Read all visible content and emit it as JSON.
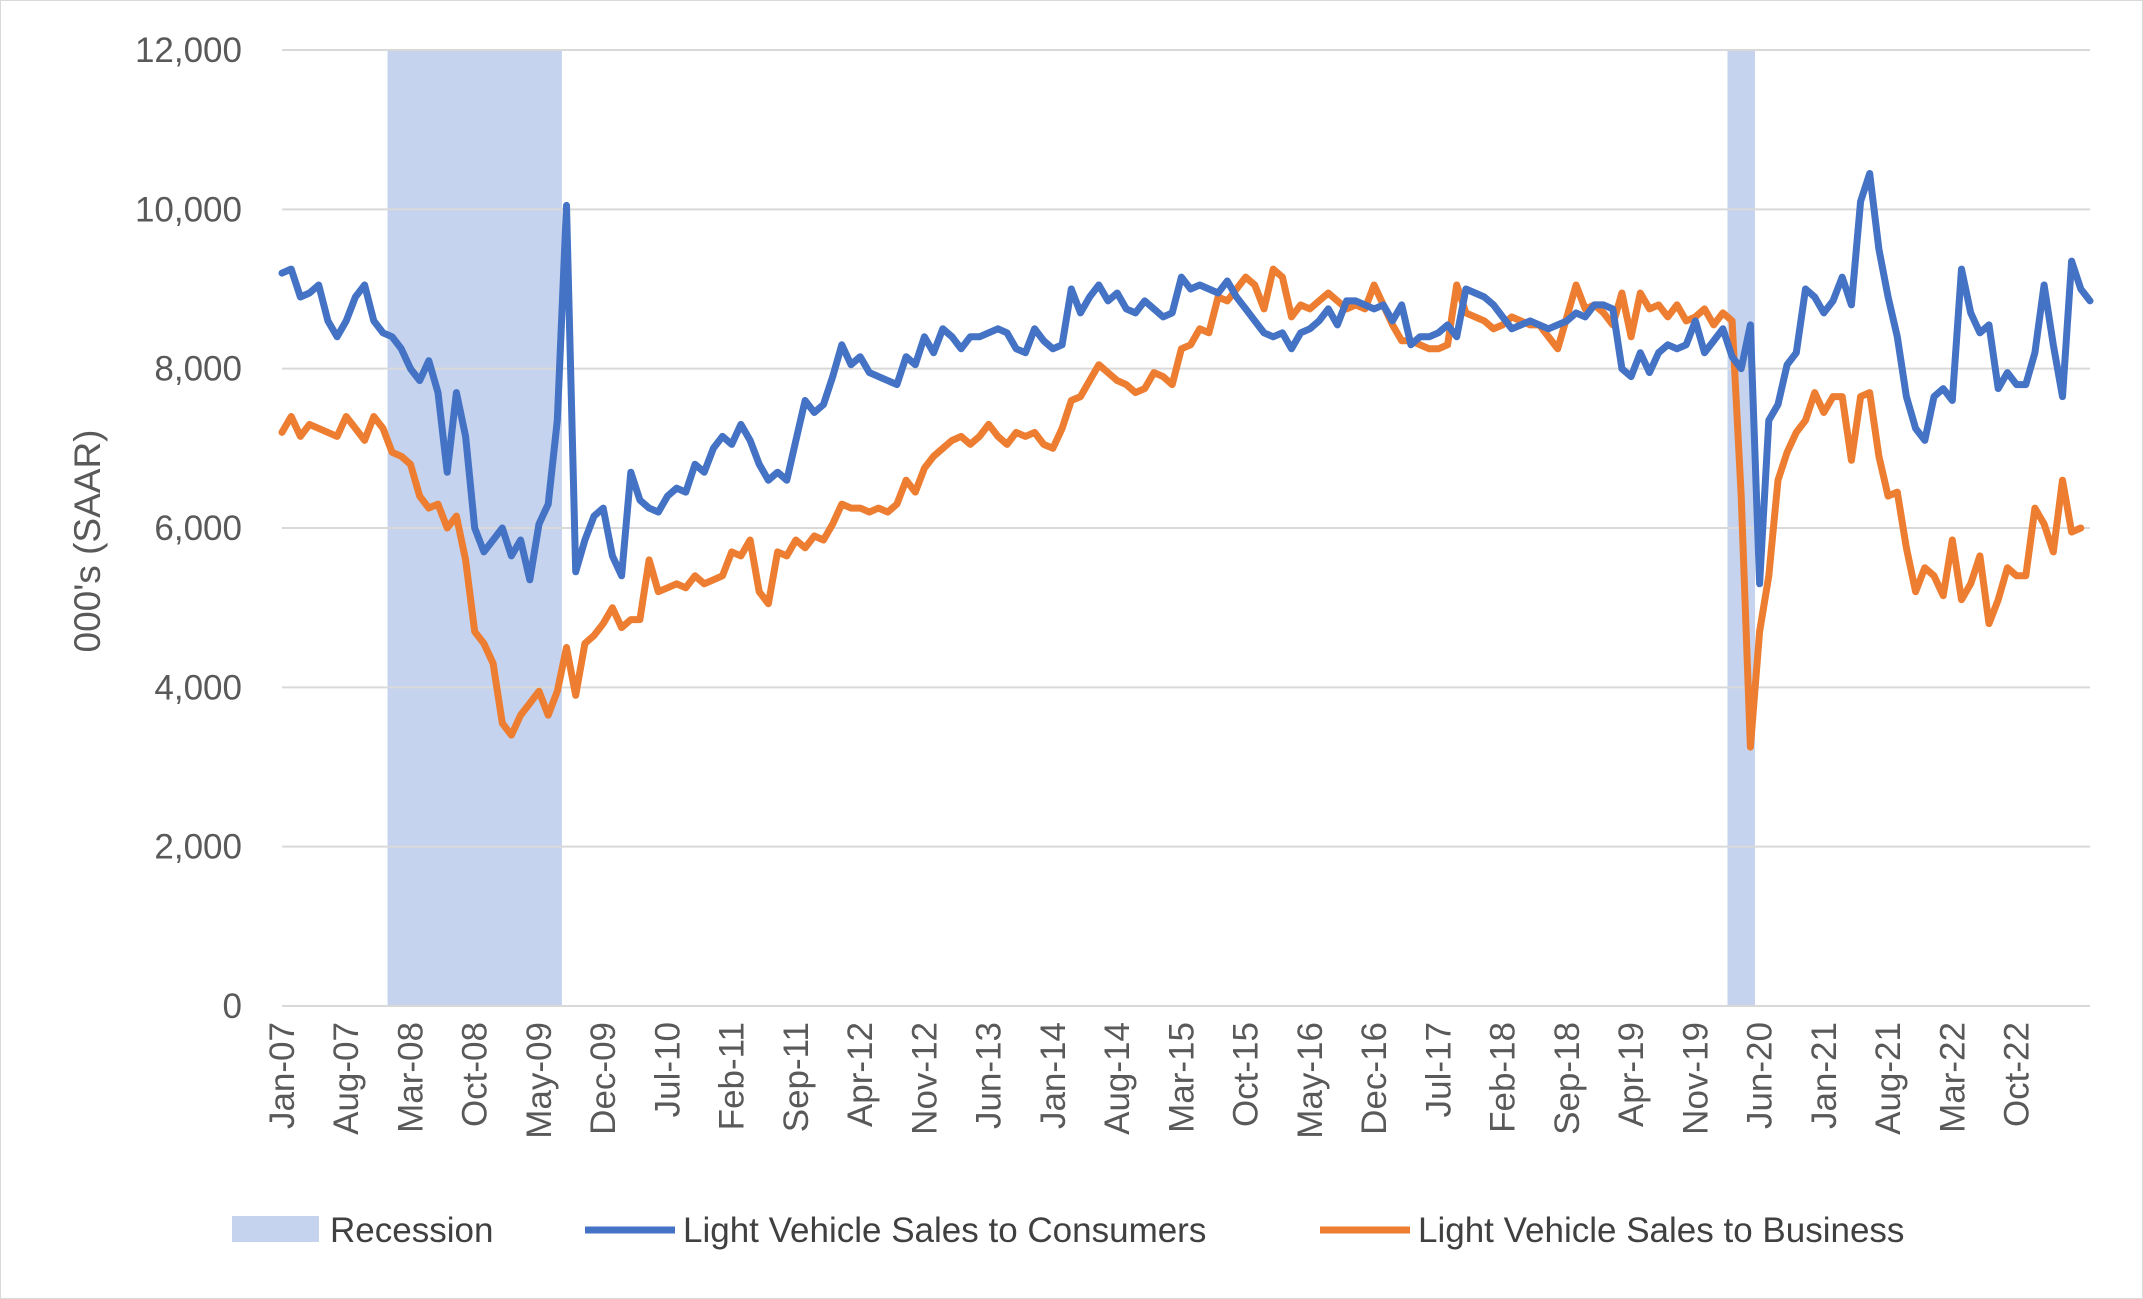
{
  "chart_data": {
    "type": "line",
    "title": "",
    "ylabel": "000's (SAAR)",
    "xlabel": "",
    "ylim": [
      0,
      12000
    ],
    "yticks": [
      "0",
      "2,000",
      "4,000",
      "6,000",
      "8,000",
      "10,000",
      "12,000"
    ],
    "x_start": "Jan-07",
    "x_ticks": [
      {
        "label": "Jan-07",
        "index": 0
      },
      {
        "label": "Aug-07",
        "index": 7
      },
      {
        "label": "Mar-08",
        "index": 14
      },
      {
        "label": "Oct-08",
        "index": 21
      },
      {
        "label": "May-09",
        "index": 28
      },
      {
        "label": "Dec-09",
        "index": 35
      },
      {
        "label": "Jul-10",
        "index": 42
      },
      {
        "label": "Feb-11",
        "index": 49
      },
      {
        "label": "Sep-11",
        "index": 56
      },
      {
        "label": "Apr-12",
        "index": 63
      },
      {
        "label": "Nov-12",
        "index": 70
      },
      {
        "label": "Jun-13",
        "index": 77
      },
      {
        "label": "Jan-14",
        "index": 84
      },
      {
        "label": "Aug-14",
        "index": 91
      },
      {
        "label": "Mar-15",
        "index": 98
      },
      {
        "label": "Oct-15",
        "index": 105
      },
      {
        "label": "May-16",
        "index": 112
      },
      {
        "label": "Dec-16",
        "index": 119
      },
      {
        "label": "Jul-17",
        "index": 126
      },
      {
        "label": "Feb-18",
        "index": 133
      },
      {
        "label": "Sep-18",
        "index": 140
      },
      {
        "label": "Apr-19",
        "index": 147
      },
      {
        "label": "Nov-19",
        "index": 154
      },
      {
        "label": "Jun-20",
        "index": 161
      },
      {
        "label": "Jan-21",
        "index": 168
      },
      {
        "label": "Aug-21",
        "index": 175
      },
      {
        "label": "Mar-22",
        "index": 182
      },
      {
        "label": "Oct-22",
        "index": 189
      }
    ],
    "recessions": [
      {
        "name": "Recession",
        "start_index": 12,
        "end_index": 30
      },
      {
        "name": "Recession",
        "start_index": 158,
        "end_index": 160
      }
    ],
    "series": [
      {
        "name": "Light Vehicle Sales to Consumers",
        "color": "#4472C4",
        "values": [
          9200,
          9250,
          8900,
          8950,
          9050,
          8600,
          8400,
          8600,
          8900,
          9050,
          8600,
          8450,
          8400,
          8250,
          8000,
          7850,
          8100,
          7700,
          6700,
          7700,
          7150,
          6000,
          5700,
          5850,
          6000,
          5650,
          5850,
          5350,
          6050,
          6300,
          7350,
          10050,
          5450,
          5850,
          6150,
          6250,
          5650,
          5400,
          6700,
          6350,
          6250,
          6200,
          6400,
          6500,
          6450,
          6800,
          6700,
          7000,
          7150,
          7050,
          7300,
          7100,
          6800,
          6600,
          6700,
          6600,
          7100,
          7600,
          7450,
          7550,
          7900,
          8300,
          8050,
          8150,
          7950,
          7900,
          7850,
          7800,
          8150,
          8050,
          8400,
          8200,
          8500,
          8400,
          8250,
          8400,
          8400,
          8450,
          8500,
          8450,
          8250,
          8200,
          8500,
          8350,
          8250,
          8300,
          9000,
          8700,
          8900,
          9050,
          8850,
          8950,
          8750,
          8700,
          8850,
          8750,
          8650,
          8700,
          9150,
          9000,
          9050,
          9000,
          8950,
          9100,
          8900,
          8750,
          8600,
          8450,
          8400,
          8450,
          8250,
          8450,
          8500,
          8600,
          8750,
          8550,
          8850,
          8850,
          8800,
          8750,
          8800,
          8600,
          8800,
          8300,
          8400,
          8400,
          8450,
          8550,
          8400,
          9000,
          8950,
          8900,
          8800,
          8650,
          8500,
          8550,
          8600,
          8550,
          8500,
          8550,
          8600,
          8700,
          8650,
          8800,
          8800,
          8750,
          8000,
          7900,
          8200,
          7950,
          8200,
          8300,
          8250,
          8300,
          8600,
          8200,
          8350,
          8500,
          8150,
          8000,
          8550,
          5300,
          7350,
          7550,
          8050,
          8200,
          9000,
          8900,
          8700,
          8850,
          9150,
          8800,
          10100,
          10450,
          9500,
          8900,
          8400,
          7650,
          7250,
          7100,
          7650,
          7750,
          7600,
          9250,
          8700,
          8450,
          8550,
          7750,
          7950,
          7800,
          7800,
          8200,
          9050,
          8300,
          7650,
          9350,
          9000,
          8850
        ]
      },
      {
        "name": "Light Vehicle Sales to Business",
        "color": "#ED7D31",
        "values": [
          7200,
          7400,
          7150,
          7300,
          7250,
          7200,
          7150,
          7400,
          7250,
          7100,
          7400,
          7250,
          6950,
          6900,
          6800,
          6400,
          6250,
          6300,
          6000,
          6150,
          5600,
          4700,
          4550,
          4300,
          3550,
          3400,
          3650,
          3800,
          3950,
          3650,
          3950,
          4500,
          3900,
          4550,
          4650,
          4800,
          5000,
          4750,
          4850,
          4850,
          5600,
          5200,
          5250,
          5300,
          5250,
          5400,
          5300,
          5350,
          5400,
          5700,
          5650,
          5850,
          5200,
          5050,
          5700,
          5650,
          5850,
          5750,
          5900,
          5850,
          6050,
          6300,
          6250,
          6250,
          6200,
          6250,
          6200,
          6300,
          6600,
          6450,
          6750,
          6900,
          7000,
          7100,
          7150,
          7050,
          7150,
          7300,
          7150,
          7050,
          7200,
          7150,
          7200,
          7050,
          7000,
          7250,
          7600,
          7650,
          7850,
          8050,
          7950,
          7850,
          7800,
          7700,
          7750,
          7950,
          7900,
          7800,
          8250,
          8300,
          8500,
          8450,
          8900,
          8850,
          9000,
          9150,
          9050,
          8750,
          9250,
          9150,
          8650,
          8800,
          8750,
          8850,
          8950,
          8850,
          8750,
          8800,
          8750,
          9050,
          8800,
          8550,
          8350,
          8350,
          8300,
          8250,
          8250,
          8300,
          9050,
          8700,
          8650,
          8600,
          8500,
          8550,
          8650,
          8600,
          8550,
          8550,
          8400,
          8250,
          8650,
          9050,
          8750,
          8800,
          8700,
          8550,
          8950,
          8400,
          8950,
          8750,
          8800,
          8650,
          8800,
          8600,
          8650,
          8750,
          8550,
          8700,
          8600,
          6400,
          3250,
          4700,
          5400,
          6600,
          6950,
          7200,
          7350,
          7700,
          7450,
          7650,
          7650,
          6850,
          7650,
          7700,
          6900,
          6400,
          6450,
          5750,
          5200,
          5500,
          5400,
          5150,
          5850,
          5100,
          5300,
          5650,
          4800,
          5100,
          5500,
          5400,
          5400,
          6250,
          6050,
          5700,
          6600,
          5950,
          6000
        ]
      }
    ],
    "legend": [
      "Recession",
      "Light Vehicle Sales to Consumers",
      "Light Vehicle Sales to Business"
    ],
    "legend_position": "bottom"
  }
}
